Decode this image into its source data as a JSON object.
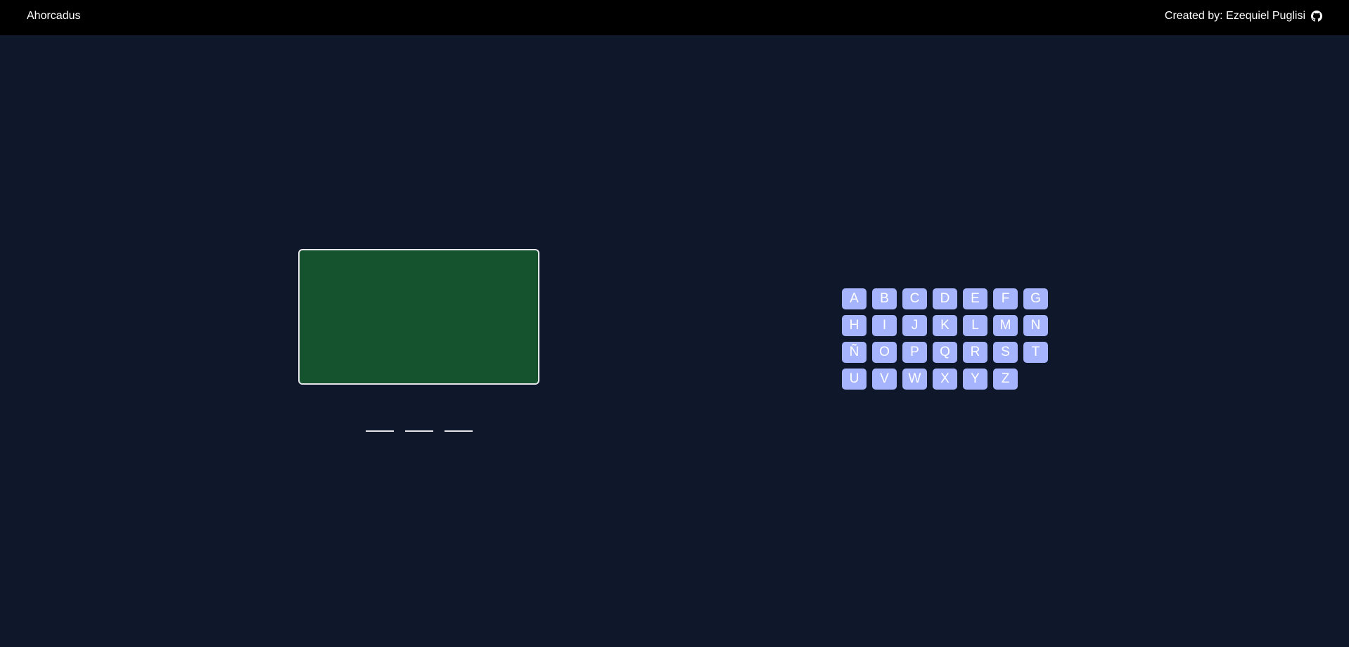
{
  "header": {
    "title": "Ahorcadus",
    "credit": "Created by: Ezequiel Puglisi",
    "credit_icon": "github-icon"
  },
  "game": {
    "board_color": "#14532d",
    "word_slots": 3
  },
  "keyboard": {
    "key_color": "#a5b4fc",
    "keys": [
      "A",
      "B",
      "C",
      "D",
      "E",
      "F",
      "G",
      "H",
      "I",
      "J",
      "K",
      "L",
      "M",
      "N",
      "Ñ",
      "O",
      "P",
      "Q",
      "R",
      "S",
      "T",
      "U",
      "V",
      "W",
      "X",
      "Y",
      "Z"
    ]
  }
}
